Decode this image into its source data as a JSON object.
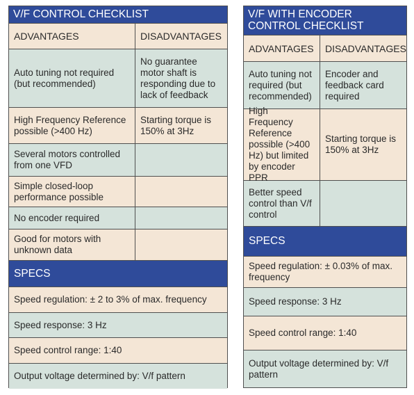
{
  "left": {
    "title": "V/F CONTROL CHECKLIST",
    "col_advantages": "ADVANTAGES",
    "col_disadvantages": "DISADVANTAGES",
    "rows": [
      {
        "advantage": "Auto tuning not required (but recommended)",
        "disadvantage": "No guarantee motor shaft is responding due to lack of feedback"
      },
      {
        "advantage": "High Frequency Reference possible (>400 Hz)",
        "disadvantage": "Starting torque is 150% at 3Hz"
      },
      {
        "advantage": "Several motors controlled from one VFD",
        "disadvantage": ""
      },
      {
        "advantage": "Simple closed-loop performance possible",
        "disadvantage": ""
      },
      {
        "advantage": "No encoder required",
        "disadvantage": ""
      },
      {
        "advantage": "Good for motors with unknown data",
        "disadvantage": ""
      }
    ],
    "specs_title": "SPECS",
    "specs": [
      "Speed regulation: ± 2 to 3% of max. frequency",
      "Speed response: 3 Hz",
      "Speed control range: 1:40",
      "Output voltage determined by: V/f pattern"
    ]
  },
  "right": {
    "title": "V/F WITH ENCODER CONTROL CHECKLIST",
    "col_advantages": "ADVANTAGES",
    "col_disadvantages": "DISADVANTAGES",
    "rows": [
      {
        "advantage": "Auto tuning not required (but recommended)",
        "disadvantage": "Encoder and feedback card required"
      },
      {
        "advantage": "High Frequency Reference possible (>400 Hz) but limited by encoder PPR",
        "disadvantage": "Starting torque is 150% at 3Hz"
      },
      {
        "advantage": "Better speed control than V/f control",
        "disadvantage": ""
      }
    ],
    "specs_title": "SPECS",
    "specs": [
      "Speed regulation: ± 0.03% of max. frequency",
      "Speed response: 3 Hz",
      "Speed control range: 1:40",
      "Output voltage determined by: V/f pattern"
    ]
  }
}
